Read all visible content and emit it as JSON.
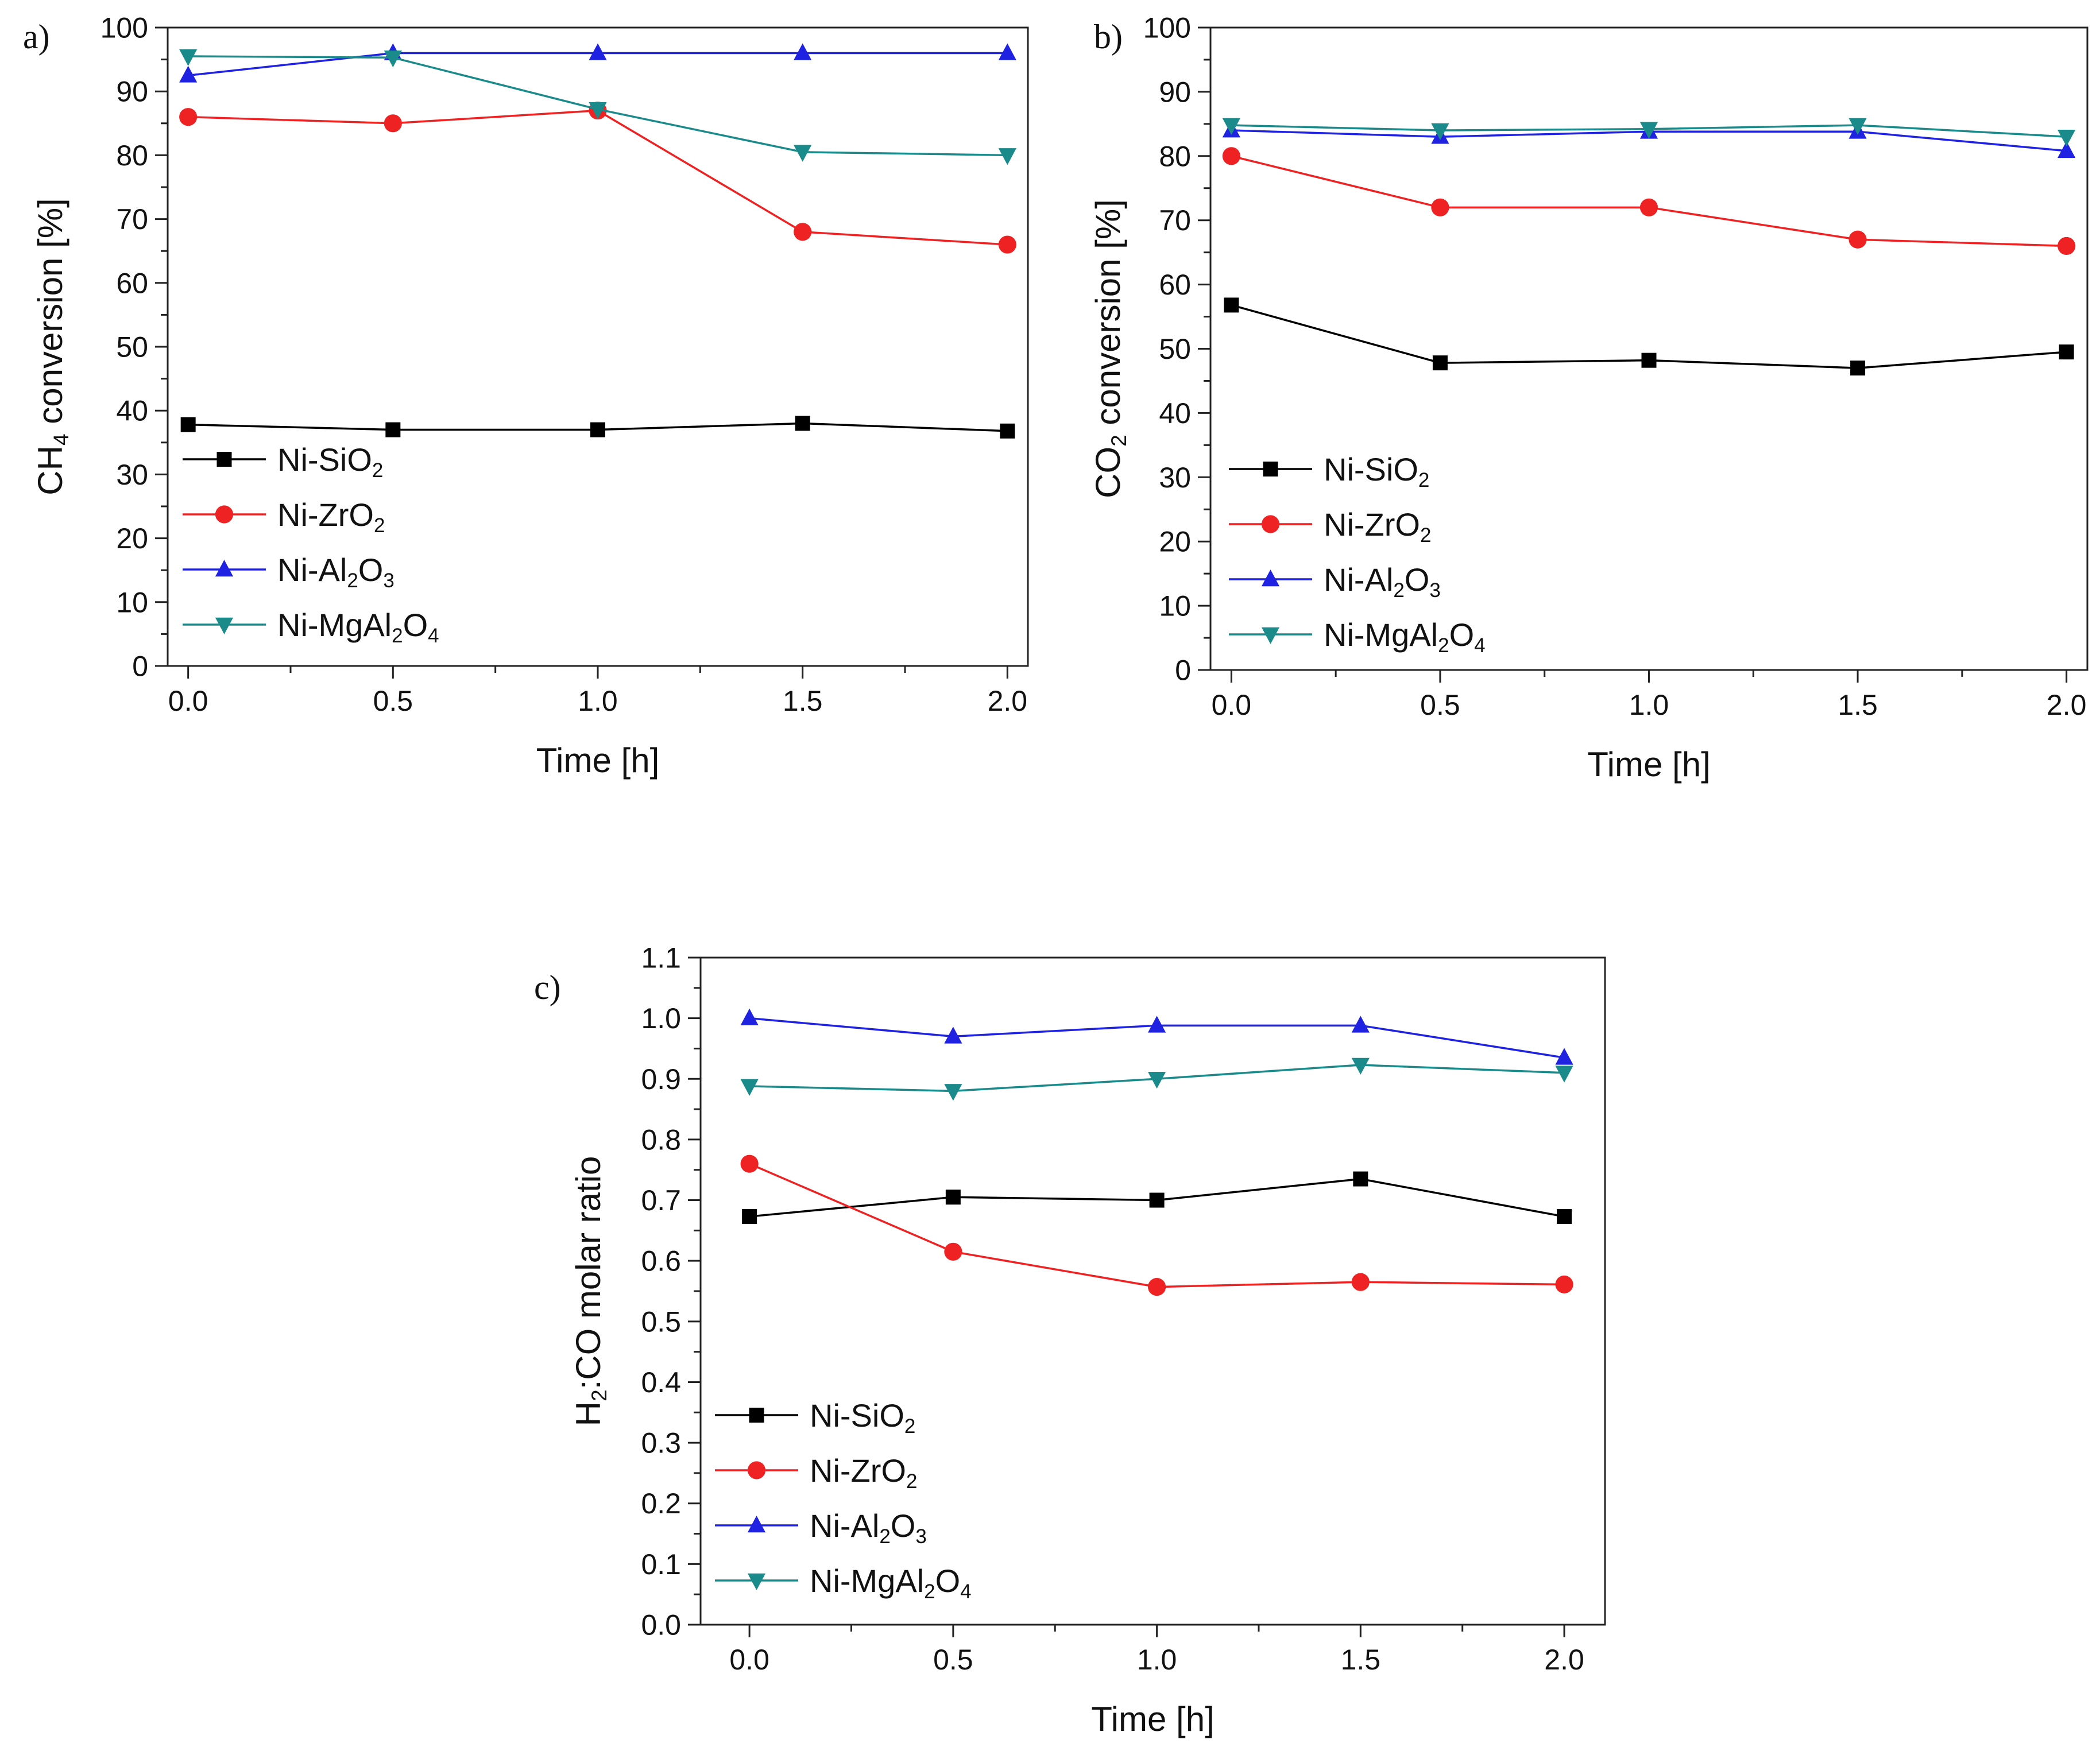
{
  "chart_data": [
    {
      "type": "line",
      "panel_label": "a)",
      "title": "",
      "xlabel": "Time [h]",
      "ylabel": {
        "pre": "CH",
        "sub": "4",
        "post": " conversion [%]"
      },
      "xlim": [
        -0.05,
        2.05
      ],
      "ylim": [
        0,
        100
      ],
      "xticks": [
        0.0,
        0.5,
        1.0,
        1.5,
        2.0
      ],
      "xtick_labels": [
        "0.0",
        "0.5",
        "1.0",
        "1.5",
        "2.0"
      ],
      "yticks": [
        0,
        10,
        20,
        30,
        40,
        50,
        60,
        70,
        80,
        90,
        100
      ],
      "ytick_labels": [
        "0",
        "10",
        "20",
        "30",
        "40",
        "50",
        "60",
        "70",
        "80",
        "90",
        "100"
      ],
      "grid": false,
      "legend_position": "lower-left",
      "x": [
        0.0,
        0.5,
        1.0,
        1.5,
        2.0
      ],
      "series": [
        {
          "key": "Ni-SiO2",
          "name": [
            [
              "Ni-SiO",
              ""
            ],
            [
              "2",
              "sub"
            ]
          ],
          "marker": "square",
          "values": [
            37.8,
            37.0,
            37.0,
            38.0,
            36.8
          ]
        },
        {
          "key": "Ni-ZrO2",
          "name": [
            [
              "Ni-ZrO",
              ""
            ],
            [
              "2",
              "sub"
            ]
          ],
          "marker": "circle",
          "values": [
            86.0,
            85.0,
            87.0,
            68.0,
            66.0
          ]
        },
        {
          "key": "Ni-Al2O3",
          "name": [
            [
              "Ni-Al",
              ""
            ],
            [
              "2",
              "sub"
            ],
            [
              "O",
              ""
            ],
            [
              "3",
              "sub"
            ]
          ],
          "marker": "triangle-up",
          "values": [
            92.5,
            96.0,
            96.0,
            96.0,
            96.0
          ]
        },
        {
          "key": "Ni-MgAl2O4",
          "name": [
            [
              "Ni-MgAl",
              ""
            ],
            [
              "2",
              "sub"
            ],
            [
              "O",
              ""
            ],
            [
              "4",
              "sub"
            ]
          ],
          "marker": "triangle-down",
          "values": [
            95.5,
            95.3,
            87.2,
            80.5,
            80.0
          ]
        }
      ]
    },
    {
      "type": "line",
      "panel_label": "b)",
      "title": "",
      "xlabel": "Time [h]",
      "ylabel": {
        "pre": "CO",
        "sub": "2",
        "post": " conversion [%]"
      },
      "xlim": [
        -0.05,
        2.05
      ],
      "ylim": [
        0,
        100
      ],
      "xticks": [
        0.0,
        0.5,
        1.0,
        1.5,
        2.0
      ],
      "xtick_labels": [
        "0.0",
        "0.5",
        "1.0",
        "1.5",
        "2.0"
      ],
      "yticks": [
        0,
        10,
        20,
        30,
        40,
        50,
        60,
        70,
        80,
        90,
        100
      ],
      "ytick_labels": [
        "0",
        "10",
        "20",
        "30",
        "40",
        "50",
        "60",
        "70",
        "80",
        "90",
        "100"
      ],
      "grid": false,
      "legend_position": "lower-left",
      "x": [
        0.0,
        0.5,
        1.0,
        1.5,
        2.0
      ],
      "series": [
        {
          "key": "Ni-SiO2",
          "name": [
            [
              "Ni-SiO",
              ""
            ],
            [
              "2",
              "sub"
            ]
          ],
          "marker": "square",
          "values": [
            56.8,
            47.8,
            48.2,
            47.0,
            49.5
          ]
        },
        {
          "key": "Ni-ZrO2",
          "name": [
            [
              "Ni-ZrO",
              ""
            ],
            [
              "2",
              "sub"
            ]
          ],
          "marker": "circle",
          "values": [
            80.0,
            72.0,
            72.0,
            67.0,
            66.0
          ]
        },
        {
          "key": "Ni-Al2O3",
          "name": [
            [
              "Ni-Al",
              ""
            ],
            [
              "2",
              "sub"
            ],
            [
              "O",
              ""
            ],
            [
              "3",
              "sub"
            ]
          ],
          "marker": "triangle-up",
          "values": [
            84.0,
            83.0,
            83.8,
            83.8,
            80.8
          ]
        },
        {
          "key": "Ni-MgAl2O4",
          "name": [
            [
              "Ni-MgAl",
              ""
            ],
            [
              "2",
              "sub"
            ],
            [
              "O",
              ""
            ],
            [
              "4",
              "sub"
            ]
          ],
          "marker": "triangle-down",
          "values": [
            84.8,
            84.0,
            84.2,
            84.8,
            83.0
          ]
        }
      ]
    },
    {
      "type": "line",
      "panel_label": "c)",
      "title": "",
      "xlabel": "Time [h]",
      "ylabel": {
        "pre": "H",
        "sub": "2",
        "post": ":CO molar ratio"
      },
      "xlim": [
        -0.12,
        2.1
      ],
      "ylim": [
        0,
        1.1
      ],
      "xticks": [
        0.0,
        0.5,
        1.0,
        1.5,
        2.0
      ],
      "xtick_labels": [
        "0.0",
        "0.5",
        "1.0",
        "1.5",
        "2.0"
      ],
      "yticks": [
        0.0,
        0.1,
        0.2,
        0.3,
        0.4,
        0.5,
        0.6,
        0.7,
        0.8,
        0.9,
        1.0,
        1.1
      ],
      "ytick_labels": [
        "0.0",
        "0.1",
        "0.2",
        "0.3",
        "0.4",
        "0.5",
        "0.6",
        "0.7",
        "0.8",
        "0.9",
        "1.0",
        "1.1"
      ],
      "grid": false,
      "legend_position": "lower-left",
      "x": [
        0.0,
        0.5,
        1.0,
        1.5,
        2.0
      ],
      "series": [
        {
          "key": "Ni-SiO2",
          "name": [
            [
              "Ni-SiO",
              ""
            ],
            [
              "2",
              "sub"
            ]
          ],
          "marker": "square",
          "values": [
            0.673,
            0.705,
            0.7,
            0.735,
            0.673
          ]
        },
        {
          "key": "Ni-ZrO2",
          "name": [
            [
              "Ni-ZrO",
              ""
            ],
            [
              "2",
              "sub"
            ]
          ],
          "marker": "circle",
          "values": [
            0.76,
            0.615,
            0.557,
            0.565,
            0.561
          ]
        },
        {
          "key": "Ni-Al2O3",
          "name": [
            [
              "Ni-Al",
              ""
            ],
            [
              "2",
              "sub"
            ],
            [
              "O",
              ""
            ],
            [
              "3",
              "sub"
            ]
          ],
          "marker": "triangle-up",
          "values": [
            1.0,
            0.97,
            0.988,
            0.988,
            0.935
          ]
        },
        {
          "key": "Ni-MgAl2O4",
          "name": [
            [
              "Ni-MgAl",
              ""
            ],
            [
              "2",
              "sub"
            ],
            [
              "O",
              ""
            ],
            [
              "4",
              "sub"
            ]
          ],
          "marker": "triangle-down",
          "values": [
            0.888,
            0.88,
            0.9,
            0.923,
            0.91
          ]
        }
      ]
    }
  ],
  "series_colors": {
    "Ni-SiO2": "#000000",
    "Ni-ZrO2": "#ee2222",
    "Ni-Al2O3": "#1f22e0",
    "Ni-MgAl2O4": "#1a8a8a"
  }
}
